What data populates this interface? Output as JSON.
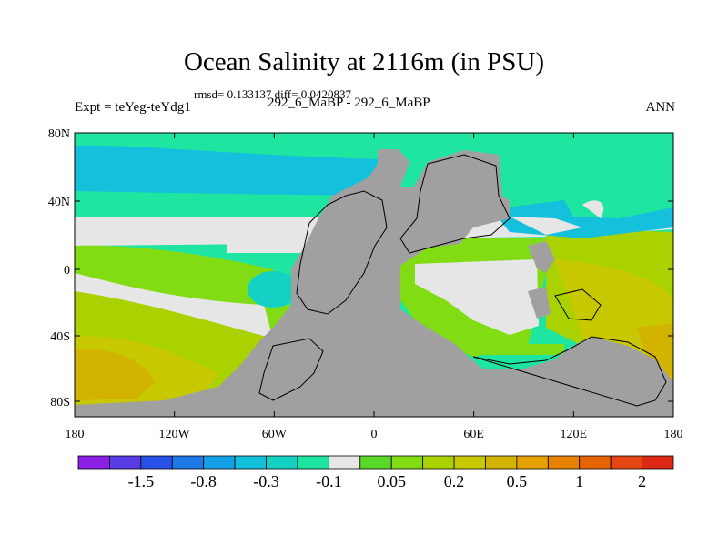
{
  "chart_data": {
    "type": "heatmap",
    "title": "Ocean Salinity at 2116m (in PSU)",
    "stats": "rmsd= 0.133137 diff= 0.0420837",
    "left_label": "Expt = teYeg-teYdg1",
    "center_label": "292_6_MaBP - 292_6_MaBP",
    "right_label": "ANN",
    "x_ticks": [
      "180",
      "120W",
      "60W",
      "0",
      "60E",
      "120E",
      "180"
    ],
    "y_ticks": [
      "80N",
      "40N",
      "0",
      "40S",
      "80S"
    ],
    "colorbar": {
      "colors": [
        "#8c1ee6",
        "#5a3ce6",
        "#2850e6",
        "#1e78e6",
        "#14a0e6",
        "#14c0dc",
        "#14d2c3",
        "#1ee6a0",
        "#e6e6e6",
        "#5ad828",
        "#82dc14",
        "#aad200",
        "#c8c800",
        "#d2b400",
        "#e6a000",
        "#e68200",
        "#e66400",
        "#e64614",
        "#dc2814"
      ],
      "tick_labels": [
        "-1.5",
        "-0.8",
        "-0.3",
        "-0.1",
        "0.05",
        "0.2",
        "0.5",
        "1",
        "2"
      ]
    },
    "land_color": "#a0a0a0"
  }
}
